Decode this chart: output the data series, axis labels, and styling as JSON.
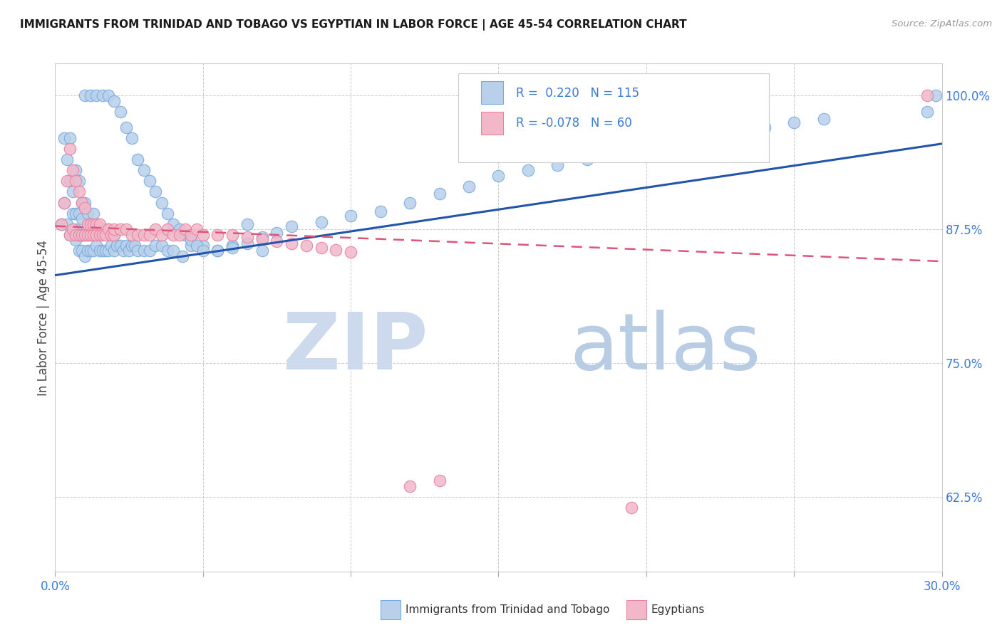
{
  "title": "IMMIGRANTS FROM TRINIDAD AND TOBAGO VS EGYPTIAN IN LABOR FORCE | AGE 45-54 CORRELATION CHART",
  "source": "Source: ZipAtlas.com",
  "ylabel": "In Labor Force | Age 45-54",
  "xlim": [
    0.0,
    0.3
  ],
  "ylim": [
    0.555,
    1.03
  ],
  "xtick_values": [
    0.0,
    0.05,
    0.1,
    0.15,
    0.2,
    0.25,
    0.3
  ],
  "ytick_values": [
    0.625,
    0.75,
    0.875,
    1.0
  ],
  "ytick_labels": [
    "62.5%",
    "75.0%",
    "87.5%",
    "100.0%"
  ],
  "blue_fill": "#b8d0ea",
  "blue_edge": "#7aabe0",
  "pink_fill": "#f2b8ca",
  "pink_edge": "#e882a0",
  "blue_line_color": "#2255aa",
  "pink_line_color": "#dd5577",
  "tick_color": "#3a7bd5",
  "legend_R_blue": "R =  0.220",
  "legend_N_blue": "N = 115",
  "legend_R_pink": "R = -0.078",
  "legend_N_pink": "N = 60",
  "watermark_zip": "ZIP",
  "watermark_atlas": "atlas",
  "blue_line_y0": 0.832,
  "blue_line_y1": 0.955,
  "pink_line_y0": 0.878,
  "pink_line_y1": 0.845,
  "blue_x": [
    0.002,
    0.003,
    0.003,
    0.004,
    0.004,
    0.005,
    0.005,
    0.005,
    0.006,
    0.006,
    0.006,
    0.007,
    0.007,
    0.007,
    0.007,
    0.008,
    0.008,
    0.008,
    0.008,
    0.009,
    0.009,
    0.009,
    0.009,
    0.01,
    0.01,
    0.01,
    0.011,
    0.011,
    0.011,
    0.012,
    0.012,
    0.013,
    0.013,
    0.013,
    0.014,
    0.014,
    0.015,
    0.015,
    0.016,
    0.016,
    0.017,
    0.017,
    0.018,
    0.018,
    0.019,
    0.02,
    0.02,
    0.021,
    0.022,
    0.023,
    0.024,
    0.025,
    0.026,
    0.027,
    0.028,
    0.03,
    0.032,
    0.034,
    0.036,
    0.038,
    0.04,
    0.043,
    0.046,
    0.05,
    0.055,
    0.06,
    0.065,
    0.07,
    0.01,
    0.012,
    0.014,
    0.016,
    0.018,
    0.02,
    0.022,
    0.024,
    0.026,
    0.028,
    0.03,
    0.032,
    0.034,
    0.036,
    0.038,
    0.04,
    0.042,
    0.044,
    0.046,
    0.048,
    0.05,
    0.055,
    0.06,
    0.065,
    0.07,
    0.075,
    0.08,
    0.09,
    0.1,
    0.11,
    0.12,
    0.13,
    0.14,
    0.15,
    0.16,
    0.17,
    0.18,
    0.19,
    0.2,
    0.21,
    0.22,
    0.23,
    0.24,
    0.25,
    0.26,
    0.295,
    0.298
  ],
  "blue_y": [
    0.88,
    0.9,
    0.96,
    0.88,
    0.94,
    0.87,
    0.92,
    0.96,
    0.87,
    0.89,
    0.91,
    0.865,
    0.875,
    0.89,
    0.93,
    0.855,
    0.87,
    0.89,
    0.92,
    0.855,
    0.87,
    0.885,
    0.9,
    0.85,
    0.87,
    0.9,
    0.855,
    0.87,
    0.89,
    0.855,
    0.875,
    0.855,
    0.87,
    0.89,
    0.86,
    0.88,
    0.855,
    0.875,
    0.855,
    0.875,
    0.855,
    0.875,
    0.855,
    0.875,
    0.86,
    0.855,
    0.87,
    0.86,
    0.86,
    0.855,
    0.86,
    0.855,
    0.86,
    0.86,
    0.855,
    0.855,
    0.855,
    0.86,
    0.86,
    0.855,
    0.855,
    0.85,
    0.86,
    0.86,
    0.855,
    0.86,
    0.88,
    0.855,
    1.0,
    1.0,
    1.0,
    1.0,
    1.0,
    0.995,
    0.985,
    0.97,
    0.96,
    0.94,
    0.93,
    0.92,
    0.91,
    0.9,
    0.89,
    0.88,
    0.875,
    0.87,
    0.865,
    0.86,
    0.855,
    0.855,
    0.858,
    0.862,
    0.868,
    0.872,
    0.878,
    0.882,
    0.888,
    0.892,
    0.9,
    0.908,
    0.915,
    0.925,
    0.93,
    0.935,
    0.94,
    0.945,
    0.95,
    0.955,
    0.96,
    0.965,
    0.97,
    0.975,
    0.978,
    0.985,
    1.0
  ],
  "pink_x": [
    0.002,
    0.003,
    0.004,
    0.005,
    0.005,
    0.006,
    0.006,
    0.007,
    0.007,
    0.008,
    0.008,
    0.009,
    0.009,
    0.01,
    0.01,
    0.011,
    0.011,
    0.012,
    0.012,
    0.013,
    0.013,
    0.014,
    0.014,
    0.015,
    0.015,
    0.016,
    0.017,
    0.018,
    0.019,
    0.02,
    0.02,
    0.022,
    0.024,
    0.026,
    0.028,
    0.03,
    0.032,
    0.034,
    0.036,
    0.038,
    0.04,
    0.042,
    0.044,
    0.046,
    0.048,
    0.05,
    0.055,
    0.06,
    0.065,
    0.07,
    0.075,
    0.08,
    0.085,
    0.09,
    0.095,
    0.1,
    0.12,
    0.13,
    0.195,
    0.295
  ],
  "pink_y": [
    0.88,
    0.9,
    0.92,
    0.87,
    0.95,
    0.875,
    0.93,
    0.87,
    0.92,
    0.87,
    0.91,
    0.87,
    0.9,
    0.87,
    0.895,
    0.87,
    0.88,
    0.87,
    0.88,
    0.87,
    0.88,
    0.87,
    0.88,
    0.87,
    0.88,
    0.87,
    0.87,
    0.875,
    0.87,
    0.87,
    0.875,
    0.875,
    0.875,
    0.87,
    0.87,
    0.87,
    0.87,
    0.875,
    0.87,
    0.875,
    0.87,
    0.87,
    0.875,
    0.87,
    0.875,
    0.87,
    0.87,
    0.87,
    0.868,
    0.866,
    0.864,
    0.862,
    0.86,
    0.858,
    0.856,
    0.854,
    0.635,
    0.64,
    0.615,
    1.0
  ]
}
